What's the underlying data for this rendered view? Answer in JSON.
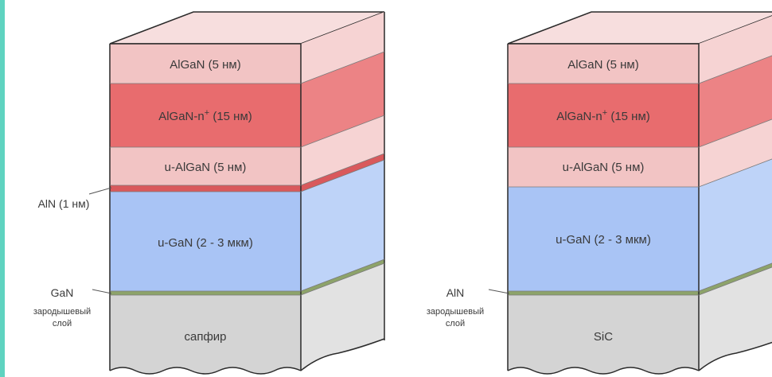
{
  "colors": {
    "algan": "#f2c4c4",
    "algan_side": "#f6d3d3",
    "algan_top": "#f7dede",
    "algan_n": "#e86c6e",
    "algan_n_side": "#ec8385",
    "aln_thin": "#d9595c",
    "gan": "#a9c4f5",
    "gan_side": "#bed3f8",
    "nucleation": "#8da36a",
    "substrate": "#d4d4d4",
    "substrate_side": "#e2e2e2",
    "outline": "#2a2a2a",
    "accent_border": "#5fd3c0"
  },
  "left_stack": {
    "layers": {
      "algan_top": "AlGaN (5 нм)",
      "algan_n_main": "AlGaN-n",
      "algan_n_sup": "+",
      "algan_n_rest": " (15 нм)",
      "u_algan": "u-AlGaN (5 нм)",
      "u_gan": "u-GaN (2 - 3 мкм)",
      "substrate": "сапфир"
    },
    "annotations": {
      "aln": "AlN (1 нм)",
      "nucleation_title": "GaN",
      "nucleation_line1": "зародышевый",
      "nucleation_line2": "слой"
    }
  },
  "right_stack": {
    "layers": {
      "algan_top": "AlGaN (5 нм)",
      "algan_n_main": "AlGaN-n",
      "algan_n_sup": "+",
      "algan_n_rest": " (15 нм)",
      "u_algan": "u-AlGaN (5 нм)",
      "u_gan": "u-GaN (2 - 3 мкм)",
      "substrate": "SiC"
    },
    "annotations": {
      "nucleation_title": "AlN",
      "nucleation_line1": "зародышевый",
      "nucleation_line2": "слой"
    }
  }
}
